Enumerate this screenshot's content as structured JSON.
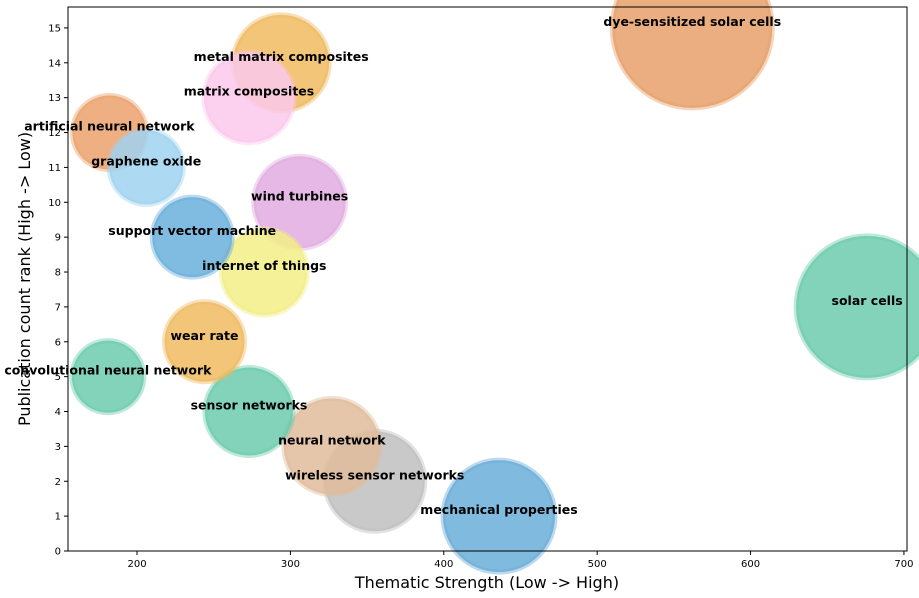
{
  "chart_data": {
    "type": "scatter",
    "title": "",
    "xlabel": "Thematic Strength (Low -> High)",
    "ylabel": "Publication count rank (High -> Low)",
    "xlim": [
      155,
      702
    ],
    "ylim": [
      0,
      15.6
    ],
    "xticks": [
      200,
      300,
      400,
      500,
      600,
      700
    ],
    "yticks": [
      0,
      1,
      2,
      3,
      4,
      5,
      6,
      7,
      8,
      9,
      10,
      11,
      12,
      13,
      14,
      15
    ],
    "grid": false,
    "points": [
      {
        "label": "dye-sensitized solar cells",
        "x": 562,
        "y": 15,
        "size": 80,
        "color": "#e8a06a"
      },
      {
        "label": "metal matrix composites",
        "x": 294,
        "y": 14,
        "size": 48,
        "color": "#f0bb62"
      },
      {
        "label": "matrix composites",
        "x": 273,
        "y": 13,
        "size": 45,
        "color": "#fbc8ec"
      },
      {
        "label": "artificial neural network",
        "x": 182,
        "y": 12,
        "size": 37,
        "color": "#eba26c"
      },
      {
        "label": "graphene oxide",
        "x": 206,
        "y": 11,
        "size": 37,
        "color": "#9fd2f0"
      },
      {
        "label": "wind turbines",
        "x": 306,
        "y": 10,
        "size": 46,
        "color": "#e0ace0"
      },
      {
        "label": "support vector machine",
        "x": 236,
        "y": 9,
        "size": 40,
        "color": "#6ab0dc"
      },
      {
        "label": "internet of things",
        "x": 283,
        "y": 8,
        "size": 43,
        "color": "#f2ee86"
      },
      {
        "label": "solar cells",
        "x": 676,
        "y": 7,
        "size": 71,
        "color": "#6ccbad"
      },
      {
        "label": "wear rate",
        "x": 244,
        "y": 6,
        "size": 40,
        "color": "#f0bb62"
      },
      {
        "label": "convolutional neural network",
        "x": 181,
        "y": 5,
        "size": 36,
        "color": "#6ccbad"
      },
      {
        "label": "sensor networks",
        "x": 273,
        "y": 4,
        "size": 44,
        "color": "#6ccbad"
      },
      {
        "label": "neural network",
        "x": 327,
        "y": 3,
        "size": 48,
        "color": "#e0bc9c"
      },
      {
        "label": "wireless sensor networks",
        "x": 355,
        "y": 2,
        "size": 50,
        "color": "#bfbfbf"
      },
      {
        "label": "mechanical properties",
        "x": 436,
        "y": 1,
        "size": 56,
        "color": "#6aaed8"
      }
    ]
  }
}
